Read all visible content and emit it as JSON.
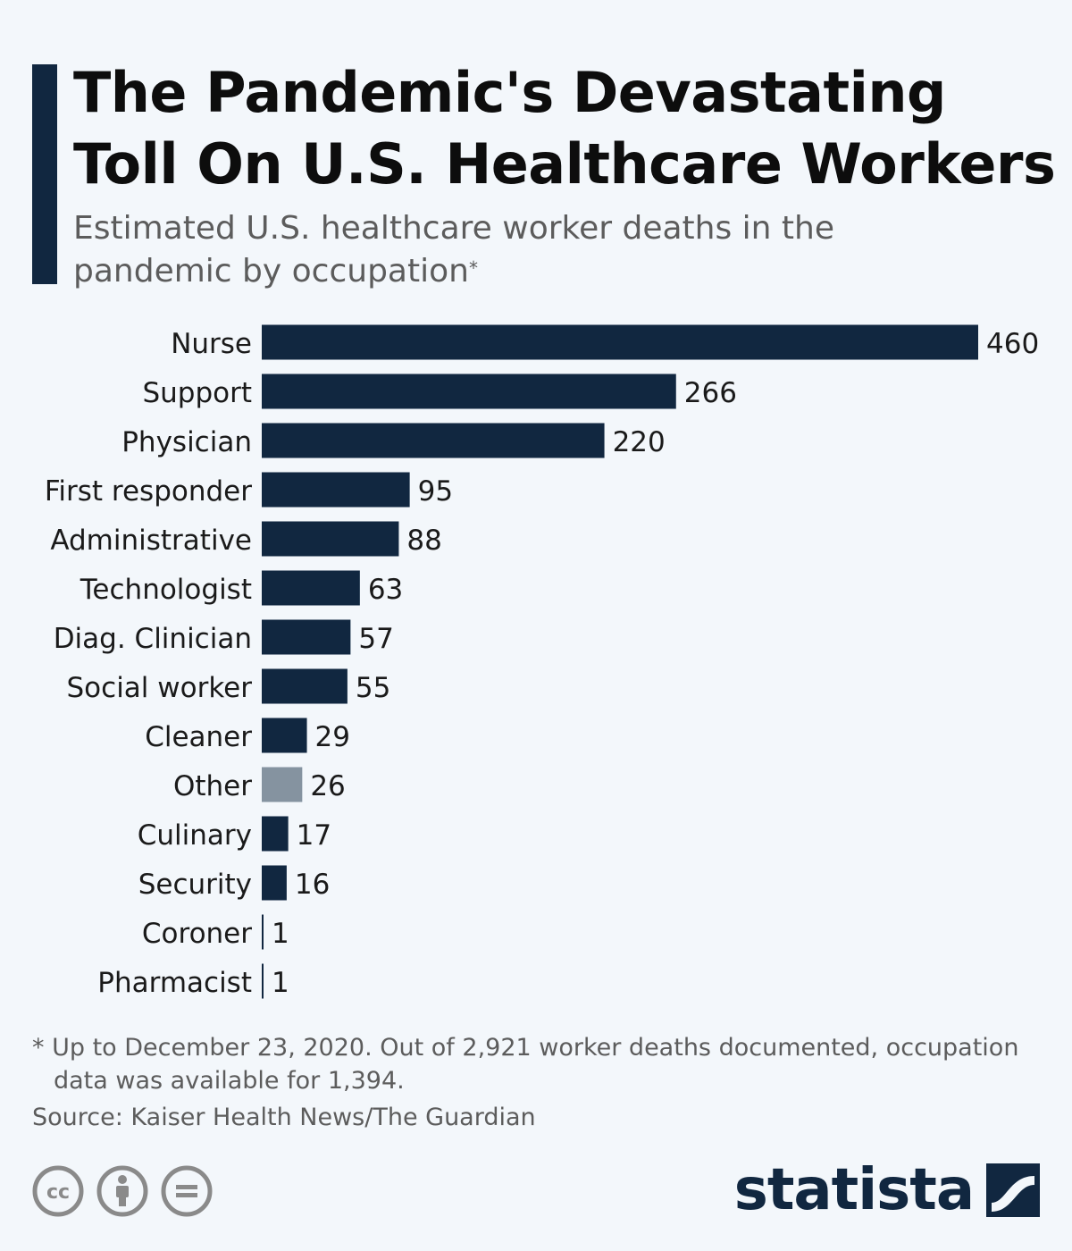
{
  "header": {
    "title": "The Pandemic's Devastating Toll On U.S. Healthcare Workers",
    "subtitle": "Estimated U.S. healthcare worker deaths in the pandemic by occupation",
    "subtitle_marker": "*"
  },
  "chart_data": {
    "type": "bar",
    "orientation": "horizontal",
    "title": "The Pandemic's Devastating Toll On U.S. Healthcare Workers",
    "categories": [
      "Nurse",
      "Support",
      "Physician",
      "First responder",
      "Administrative",
      "Technologist",
      "Diag. Clinician",
      "Social worker",
      "Cleaner",
      "Other",
      "Culinary",
      "Security",
      "Coroner",
      "Pharmacist"
    ],
    "values": [
      460,
      266,
      220,
      95,
      88,
      63,
      57,
      55,
      29,
      26,
      17,
      16,
      1,
      1
    ],
    "value_labels": [
      "460",
      "266",
      "220",
      "95",
      "88",
      "63",
      "57",
      "55",
      "29",
      "26",
      "17",
      "16",
      "1",
      "1"
    ],
    "xlim": [
      0,
      460
    ],
    "grid": false,
    "colors": {
      "default": "#112740",
      "Other": "#8593a0"
    }
  },
  "footer": {
    "footnote": "* Up to December 23, 2020. Out of 2,921 worker deaths documented, occupation data was available for 1,394.",
    "source": "Source: Kaiser Health News/The Guardian",
    "license_icons": [
      "creative-commons-icon",
      "attribution-icon",
      "no-derivatives-icon"
    ],
    "brand": "statista"
  }
}
